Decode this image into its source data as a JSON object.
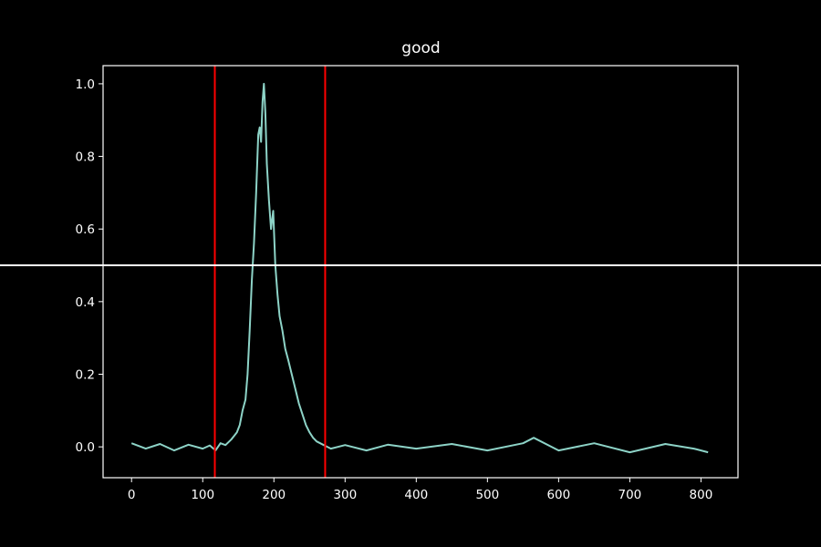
{
  "chart_data": {
    "type": "line",
    "title": "good",
    "xlabel": "",
    "ylabel": "",
    "xlim": [
      -40,
      852
    ],
    "ylim": [
      -0.085,
      1.05
    ],
    "x_ticks": [
      0,
      100,
      200,
      300,
      400,
      500,
      600,
      700,
      800
    ],
    "x_tick_labels": [
      "0",
      "100",
      "200",
      "300",
      "400",
      "500",
      "600",
      "700",
      "800"
    ],
    "y_ticks": [
      0.0,
      0.2,
      0.4,
      0.6,
      0.8,
      1.0
    ],
    "y_tick_labels": [
      "0.0",
      "0.2",
      "0.4",
      "0.6",
      "0.8",
      "1.0"
    ],
    "grid": false,
    "legend": "none",
    "series": [
      {
        "color": "#8dd3c7",
        "x": [
          0,
          20,
          40,
          60,
          80,
          100,
          110,
          118,
          125,
          132,
          140,
          148,
          152,
          156,
          160,
          163,
          166,
          169,
          172,
          175,
          178,
          180,
          182,
          184,
          186,
          188,
          190,
          193,
          196,
          199,
          202,
          205,
          208,
          212,
          216,
          220,
          225,
          230,
          235,
          240,
          245,
          250,
          255,
          260,
          265,
          270,
          275,
          280,
          300,
          330,
          360,
          400,
          450,
          500,
          550,
          565,
          600,
          650,
          700,
          750,
          790,
          810
        ],
        "y": [
          0.01,
          -0.005,
          0.008,
          -0.01,
          0.006,
          -0.005,
          0.004,
          -0.01,
          0.01,
          0.005,
          0.02,
          0.04,
          0.06,
          0.1,
          0.13,
          0.2,
          0.32,
          0.46,
          0.56,
          0.7,
          0.86,
          0.88,
          0.84,
          0.95,
          1.0,
          0.92,
          0.78,
          0.68,
          0.6,
          0.65,
          0.5,
          0.42,
          0.36,
          0.32,
          0.27,
          0.24,
          0.2,
          0.16,
          0.12,
          0.09,
          0.06,
          0.04,
          0.025,
          0.015,
          0.01,
          0.005,
          0.0,
          -0.005,
          0.005,
          -0.01,
          0.006,
          -0.005,
          0.008,
          -0.01,
          0.01,
          0.025,
          -0.01,
          0.01,
          -0.015,
          0.008,
          -0.005,
          -0.015
        ]
      }
    ],
    "vertical_lines": [
      {
        "x": 117,
        "color": "#ff0000"
      },
      {
        "x": 272,
        "color": "#ff0000"
      }
    ],
    "horizontal_lines": [
      {
        "y": 0.5,
        "color": "#ffffff"
      }
    ]
  }
}
